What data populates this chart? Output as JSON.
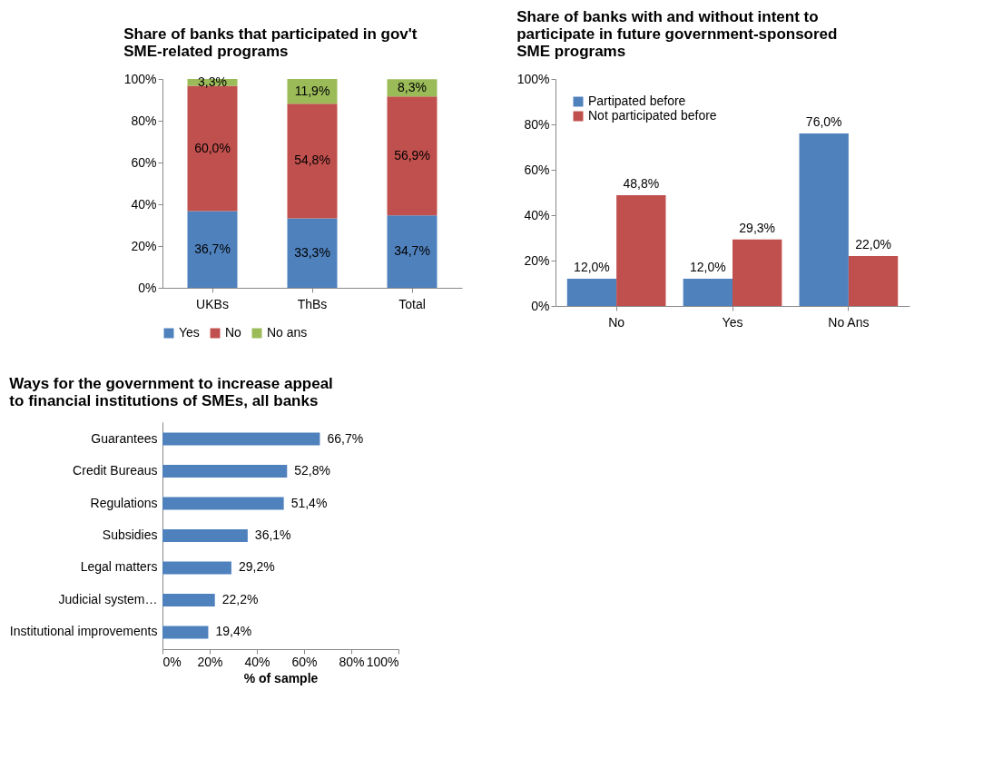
{
  "chart_data": [
    {
      "type": "bar",
      "title": "Share of banks that participated in gov't SME-related programs",
      "stacked": true,
      "categories": [
        "UKBs",
        "ThBs",
        "Total"
      ],
      "series": [
        {
          "name": "Yes",
          "color": "#4f81bd",
          "values": [
            36.7,
            33.3,
            34.7
          ],
          "value_labels": [
            "36,7%",
            "33,3%",
            "34,7%"
          ]
        },
        {
          "name": "No",
          "color": "#c0504d",
          "values": [
            60.0,
            54.8,
            56.9
          ],
          "value_labels": [
            "60,0%",
            "54,8%",
            "56,9%"
          ]
        },
        {
          "name": "No ans",
          "color": "#9bbb59",
          "values": [
            3.3,
            11.9,
            8.3
          ],
          "value_labels": [
            "3,3%",
            "11,9%",
            "8,3%"
          ]
        }
      ],
      "ylim": [
        0,
        100
      ],
      "yticks": [
        {
          "value": 0,
          "label": "0%"
        },
        {
          "value": 20,
          "label": "20%"
        },
        {
          "value": 40,
          "label": "40%"
        },
        {
          "value": 60,
          "label": "60%"
        },
        {
          "value": 80,
          "label": "80%"
        },
        {
          "value": 100,
          "label": "100%"
        }
      ],
      "grid": false,
      "legend": "bottom"
    },
    {
      "type": "bar",
      "title": "Share of banks with and without intent to participate in future government-sponsored SME programs",
      "categories": [
        "No",
        "Yes",
        "No Ans"
      ],
      "series": [
        {
          "name": "Partipated before",
          "color": "#4f81bd",
          "values": [
            12.0,
            12.0,
            76.0
          ],
          "value_labels": [
            "12,0%",
            "12,0%",
            "76,0%"
          ]
        },
        {
          "name": "Not participated before",
          "color": "#c0504d",
          "values": [
            48.8,
            29.3,
            22.0
          ],
          "value_labels": [
            "48,8%",
            "29,3%",
            "22,0%"
          ]
        }
      ],
      "ylim": [
        0,
        100
      ],
      "yticks": [
        {
          "value": 0,
          "label": "0%"
        },
        {
          "value": 20,
          "label": "20%"
        },
        {
          "value": 40,
          "label": "40%"
        },
        {
          "value": 60,
          "label": "60%"
        },
        {
          "value": 80,
          "label": "80%"
        },
        {
          "value": 100,
          "label": "100%"
        }
      ],
      "grid": false,
      "legend": "top left"
    },
    {
      "type": "bar",
      "orientation": "horizontal",
      "title": "Ways for the government to increase appeal to financial institutions of SMEs, all banks",
      "xlabel": "% of sample",
      "categories": [
        "Guarantees",
        "Credit Bureaus",
        "Regulations",
        "Subsidies",
        "Legal matters",
        "Judicial system…",
        "Institutional improvements"
      ],
      "series": [
        {
          "color": "#4f81bd",
          "values": [
            66.7,
            52.8,
            51.4,
            36.1,
            29.2,
            22.2,
            19.4
          ],
          "value_labels": [
            "66,7%",
            "52,8%",
            "51,4%",
            "36,1%",
            "29,2%",
            "22,2%",
            "19,4%"
          ]
        }
      ],
      "xlim": [
        0,
        100
      ],
      "xticks": [
        {
          "value": 0,
          "label": "0%"
        },
        {
          "value": 20,
          "label": "20%"
        },
        {
          "value": 40,
          "label": "40%"
        },
        {
          "value": 60,
          "label": "60%"
        },
        {
          "value": 80,
          "label": "80%"
        },
        {
          "value": 100,
          "label": "100%"
        }
      ],
      "grid": false
    }
  ]
}
